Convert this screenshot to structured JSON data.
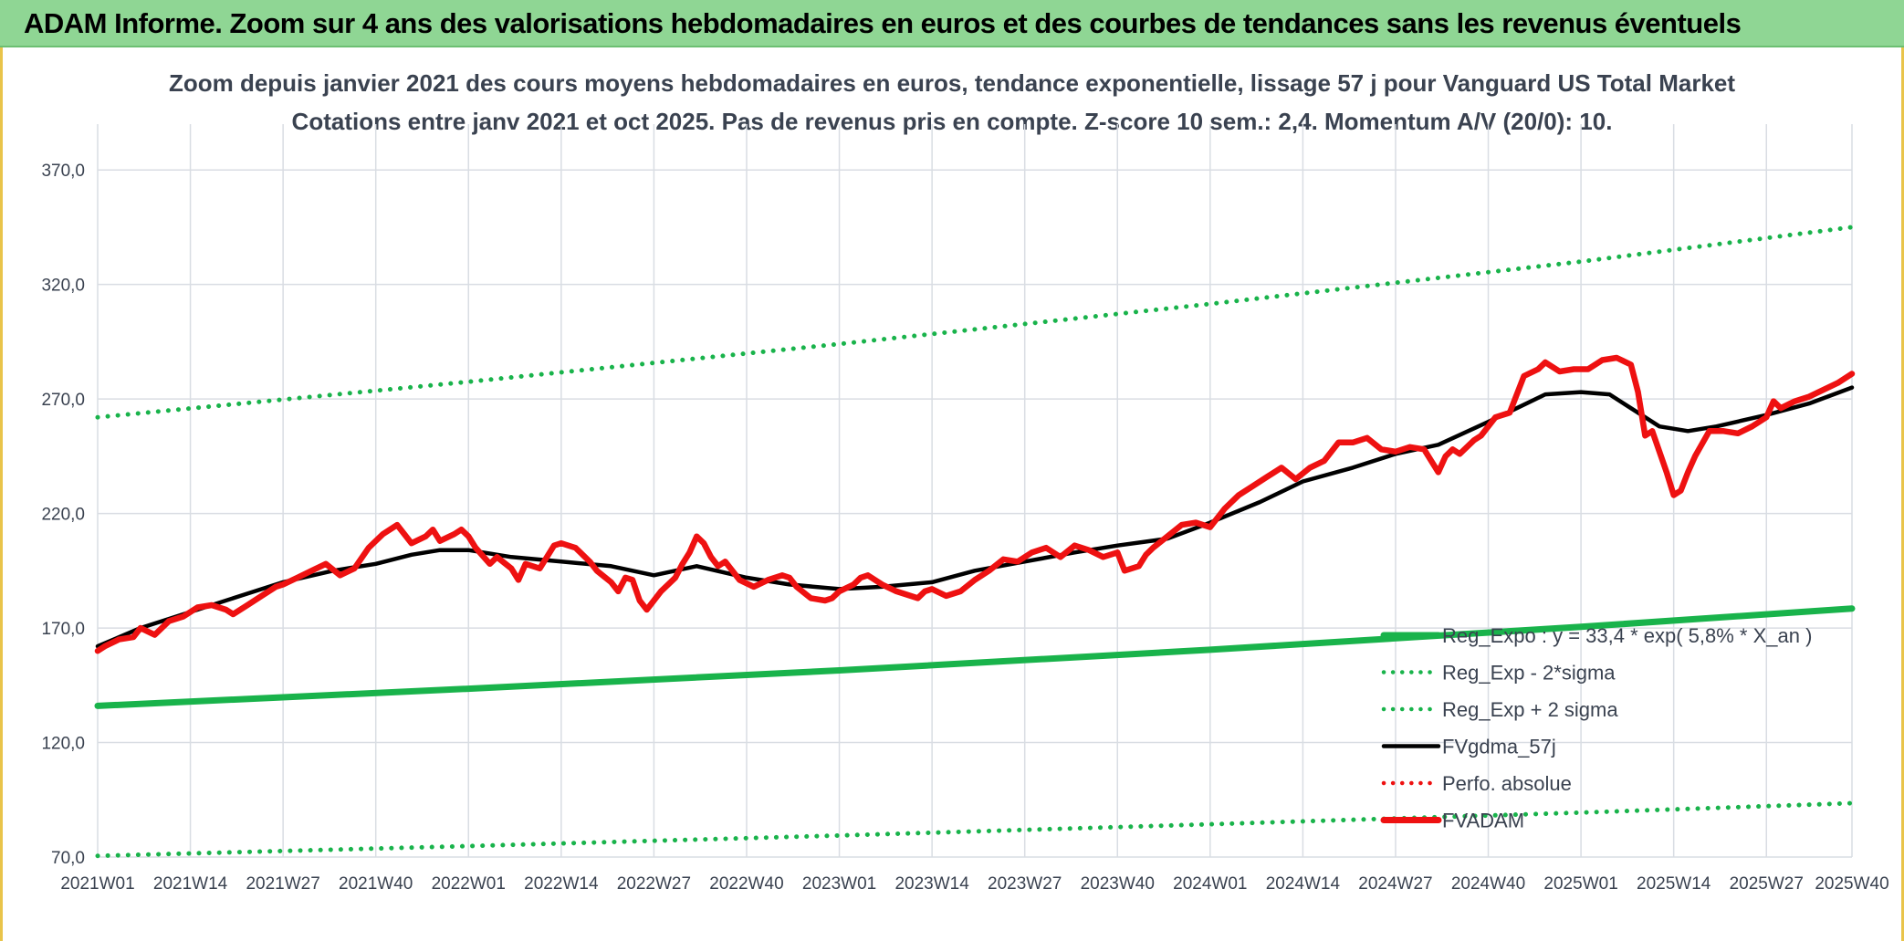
{
  "banner": {
    "title": "ADAM Informe. Zoom sur 4 ans des valorisations hebdomadaires en euros et des courbes de tendances sans les revenus éventuels"
  },
  "colors": {
    "banner_bg": "#8fd694",
    "grid": "#d9dde3",
    "text": "#3a4250",
    "reg_green": "#19b34b",
    "black": "#000000",
    "red": "#ee1111"
  },
  "chart_data": {
    "type": "line",
    "title_line1": "Zoom depuis janvier 2021 des cours moyens hebdomadaires en euros, tendance exponentielle, lissage 57 j pour Vanguard US Total Market",
    "title_line2": "Cotations entre janv 2021 et oct 2025. Pas de revenus pris en compte. Z-score 10 sem.: 2,4. Momentum A/V (20/0): 10.",
    "ylim": [
      70,
      390
    ],
    "yticks": [
      70,
      120,
      170,
      220,
      270,
      320,
      370
    ],
    "ytick_labels": [
      "70,0",
      "120,0",
      "170,0",
      "220,0",
      "270,0",
      "320,0",
      "370,0"
    ],
    "x_range_weeks": [
      0,
      246
    ],
    "xticks": [
      0,
      13,
      26,
      39,
      52,
      65,
      78,
      91,
      104,
      117,
      130,
      143,
      156,
      169,
      182,
      195,
      208,
      221,
      234,
      246
    ],
    "xtick_labels": [
      "2021W01",
      "2021W14",
      "2021W27",
      "2021W40",
      "2022W01",
      "2022W14",
      "2022W27",
      "2022W40",
      "2023W01",
      "2023W14",
      "2023W27",
      "2023W40",
      "2024W01",
      "2024W14",
      "2024W27",
      "2024W40",
      "2025W01",
      "2025W14",
      "2025W27",
      "2025W40"
    ],
    "legend": [
      {
        "name": "Reg_Expo : y = 33,4 * exp( 5,8% *  X_an )",
        "style": "thick",
        "color": "#19b34b"
      },
      {
        "name": "Reg_Exp - 2*sigma",
        "style": "dotted",
        "color": "#19b34b"
      },
      {
        "name": "Reg_Exp + 2 sigma",
        "style": "dotted",
        "color": "#19b34b"
      },
      {
        "name": "FVgdma_57j",
        "style": "solid",
        "color": "#000000"
      },
      {
        "name": "Perfo. absolue",
        "style": "dotted",
        "color": "#ee1111"
      },
      {
        "name": "FVADAM",
        "style": "thick",
        "color": "#ee1111"
      }
    ],
    "series": [
      {
        "name": "Reg_Expo",
        "x": [
          0,
          52,
          104,
          156,
          208,
          246
        ],
        "y": [
          136,
          143.5,
          151.5,
          160.5,
          170.5,
          178.5
        ]
      },
      {
        "name": "Reg_Exp - 2*sigma",
        "x": [
          0,
          52,
          104,
          156,
          208,
          246
        ],
        "y": [
          70.5,
          74.8,
          79.4,
          84.3,
          89.4,
          93.5
        ]
      },
      {
        "name": "Reg_Exp + 2 sigma",
        "x": [
          0,
          52,
          104,
          156,
          208,
          246
        ],
        "y": [
          262,
          277.5,
          294,
          311.5,
          330,
          345
        ]
      },
      {
        "name": "FVgdma_57j",
        "x": [
          0,
          6,
          13,
          20,
          26,
          33,
          39,
          44,
          48,
          52,
          58,
          65,
          72,
          78,
          84,
          91,
          97,
          104,
          110,
          117,
          123,
          130,
          137,
          143,
          150,
          156,
          163,
          169,
          176,
          182,
          188,
          195,
          199,
          203,
          208,
          212,
          215,
          219,
          223,
          227,
          234,
          240,
          246
        ],
        "y": [
          162,
          170,
          177,
          184,
          190,
          195,
          198,
          202,
          204,
          204,
          201,
          199,
          197,
          193,
          197,
          192,
          189,
          187,
          188,
          190,
          195,
          199,
          203,
          206,
          209,
          216,
          225,
          234,
          240,
          246,
          250,
          260,
          266,
          272,
          273,
          272,
          266,
          258,
          256,
          258,
          263,
          268,
          275
        ]
      },
      {
        "name": "FVADAM",
        "x": [
          0,
          1,
          3,
          5,
          6,
          8,
          10,
          12,
          14,
          16,
          18,
          19,
          21,
          23,
          25,
          26,
          28,
          30,
          32,
          34,
          36,
          38,
          40,
          42,
          44,
          46,
          47,
          48,
          50,
          51,
          52,
          53,
          55,
          56,
          58,
          59,
          60,
          62,
          64,
          65,
          67,
          69,
          70,
          72,
          73,
          74,
          75,
          76,
          77,
          79,
          81,
          82,
          83,
          84,
          85,
          86,
          87,
          88,
          90,
          92,
          94,
          96,
          97,
          98,
          100,
          102,
          103,
          104,
          106,
          107,
          108,
          110,
          112,
          114,
          115,
          116,
          117,
          119,
          121,
          123,
          125,
          127,
          129,
          131,
          133,
          135,
          137,
          139,
          141,
          143,
          144,
          146,
          147,
          148,
          150,
          152,
          154,
          156,
          158,
          160,
          162,
          164,
          166,
          168,
          170,
          172,
          174,
          176,
          178,
          180,
          182,
          184,
          186,
          188,
          189,
          190,
          191,
          193,
          194,
          196,
          198,
          200,
          202,
          203,
          205,
          207,
          209,
          211,
          213,
          215,
          216,
          217,
          218,
          220,
          221,
          222,
          223,
          224,
          226,
          228,
          230,
          232,
          234,
          235,
          236,
          238,
          240,
          242,
          244,
          246
        ],
        "y": [
          160,
          162,
          165,
          166,
          170,
          167,
          173,
          175,
          179,
          180,
          178,
          176,
          180,
          184,
          188,
          189,
          192,
          195,
          198,
          193,
          196,
          205,
          211,
          215,
          207,
          210,
          213,
          208,
          211,
          213,
          210,
          205,
          198,
          201,
          196,
          191,
          198,
          196,
          206,
          207,
          205,
          199,
          195,
          190,
          186,
          192,
          191,
          182,
          178,
          186,
          192,
          198,
          203,
          210,
          207,
          201,
          197,
          199,
          191,
          188,
          191,
          193,
          192,
          188,
          183,
          182,
          183,
          186,
          189,
          192,
          193,
          189,
          186,
          184,
          183,
          186,
          187,
          184,
          186,
          191,
          195,
          200,
          199,
          203,
          205,
          201,
          206,
          204,
          201,
          203,
          195,
          197,
          202,
          205,
          210,
          215,
          216,
          214,
          222,
          228,
          232,
          236,
          240,
          235,
          240,
          243,
          251,
          251,
          253,
          248,
          247,
          249,
          248,
          238,
          245,
          248,
          246,
          252,
          254,
          262,
          264,
          280,
          283,
          286,
          282,
          283,
          283,
          287,
          288,
          285,
          273,
          254,
          256,
          238,
          228,
          230,
          238,
          245,
          256,
          256,
          255,
          258,
          262,
          269,
          266,
          269,
          271,
          274,
          277,
          281
        ]
      }
    ]
  }
}
